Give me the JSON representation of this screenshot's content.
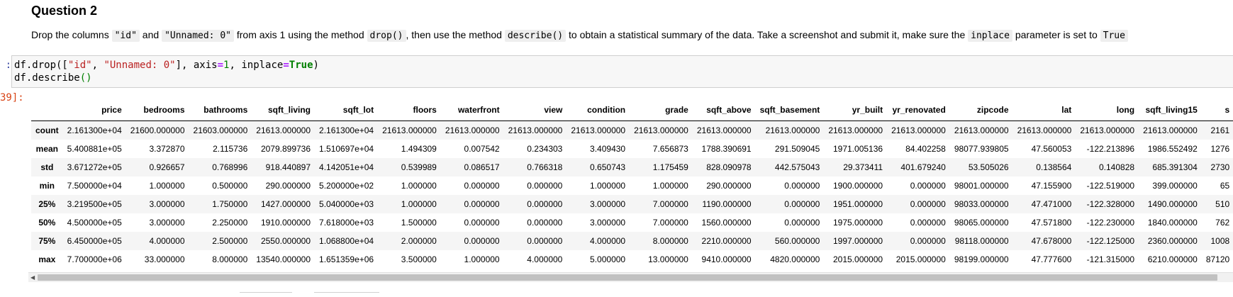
{
  "markdown": {
    "heading": "Question 2",
    "parts": [
      "Drop the columns ",
      "\"id\"",
      " and ",
      "\"Unnamed: 0\"",
      " from axis 1 using the method ",
      "drop()",
      ", then use the method ",
      "describe()",
      " to obtain a statistical summary of the data. Take a screenshot and submit it, make sure the ",
      "inplace",
      " parameter is set to ",
      "True"
    ]
  },
  "input": {
    "prompt": ":",
    "line1": {
      "a": "df.drop([",
      "s1": "\"id\"",
      "b": ", ",
      "s2": "\"Unnamed: 0\"",
      "c": "], axis",
      "eq1": "=",
      "n1": "1",
      "d": ", inplace",
      "eq2": "=",
      "kw": "True",
      "e": ")"
    },
    "line2": {
      "a": "df.describe",
      "p": "()"
    }
  },
  "output": {
    "prompt": "39]:",
    "columns": [
      "price",
      "bedrooms",
      "bathrooms",
      "sqft_living",
      "sqft_lot",
      "floors",
      "waterfront",
      "view",
      "condition",
      "grade",
      "sqft_above",
      "sqft_basement",
      "yr_built",
      "yr_renovated",
      "zipcode",
      "lat",
      "long",
      "sqft_living15",
      "s"
    ],
    "rows": [
      {
        "label": "count",
        "values": [
          "2.161300e+04",
          "21600.000000",
          "21603.000000",
          "21613.000000",
          "2.161300e+04",
          "21613.000000",
          "21613.000000",
          "21613.000000",
          "21613.000000",
          "21613.000000",
          "21613.000000",
          "21613.000000",
          "21613.000000",
          "21613.000000",
          "21613.000000",
          "21613.000000",
          "21613.000000",
          "21613.000000",
          "2161"
        ]
      },
      {
        "label": "mean",
        "values": [
          "5.400881e+05",
          "3.372870",
          "2.115736",
          "2079.899736",
          "1.510697e+04",
          "1.494309",
          "0.007542",
          "0.234303",
          "3.409430",
          "7.656873",
          "1788.390691",
          "291.509045",
          "1971.005136",
          "84.402258",
          "98077.939805",
          "47.560053",
          "-122.213896",
          "1986.552492",
          "1276"
        ]
      },
      {
        "label": "std",
        "values": [
          "3.671272e+05",
          "0.926657",
          "0.768996",
          "918.440897",
          "4.142051e+04",
          "0.539989",
          "0.086517",
          "0.766318",
          "0.650743",
          "1.175459",
          "828.090978",
          "442.575043",
          "29.373411",
          "401.679240",
          "53.505026",
          "0.138564",
          "0.140828",
          "685.391304",
          "2730"
        ]
      },
      {
        "label": "min",
        "values": [
          "7.500000e+04",
          "1.000000",
          "0.500000",
          "290.000000",
          "5.200000e+02",
          "1.000000",
          "0.000000",
          "0.000000",
          "1.000000",
          "1.000000",
          "290.000000",
          "0.000000",
          "1900.000000",
          "0.000000",
          "98001.000000",
          "47.155900",
          "-122.519000",
          "399.000000",
          "65"
        ]
      },
      {
        "label": "25%",
        "values": [
          "3.219500e+05",
          "3.000000",
          "1.750000",
          "1427.000000",
          "5.040000e+03",
          "1.000000",
          "0.000000",
          "0.000000",
          "3.000000",
          "7.000000",
          "1190.000000",
          "0.000000",
          "1951.000000",
          "0.000000",
          "98033.000000",
          "47.471000",
          "-122.328000",
          "1490.000000",
          "510"
        ]
      },
      {
        "label": "50%",
        "values": [
          "4.500000e+05",
          "3.000000",
          "2.250000",
          "1910.000000",
          "7.618000e+03",
          "1.500000",
          "0.000000",
          "0.000000",
          "3.000000",
          "7.000000",
          "1560.000000",
          "0.000000",
          "1975.000000",
          "0.000000",
          "98065.000000",
          "47.571800",
          "-122.230000",
          "1840.000000",
          "762"
        ]
      },
      {
        "label": "75%",
        "values": [
          "6.450000e+05",
          "4.000000",
          "2.500000",
          "2550.000000",
          "1.068800e+04",
          "2.000000",
          "0.000000",
          "0.000000",
          "4.000000",
          "8.000000",
          "2210.000000",
          "560.000000",
          "1997.000000",
          "0.000000",
          "98118.000000",
          "47.678000",
          "-122.125000",
          "2360.000000",
          "1008"
        ]
      },
      {
        "label": "max",
        "values": [
          "7.700000e+06",
          "33.000000",
          "8.000000",
          "13540.000000",
          "1.651359e+06",
          "3.500000",
          "1.000000",
          "4.000000",
          "5.000000",
          "13.000000",
          "9410.000000",
          "4820.000000",
          "2015.000000",
          "2015.000000",
          "98199.000000",
          "47.777600",
          "-121.315000",
          "6210.000000",
          "87120"
        ]
      }
    ]
  },
  "scrollbar": {
    "left_arrow": "◀"
  }
}
